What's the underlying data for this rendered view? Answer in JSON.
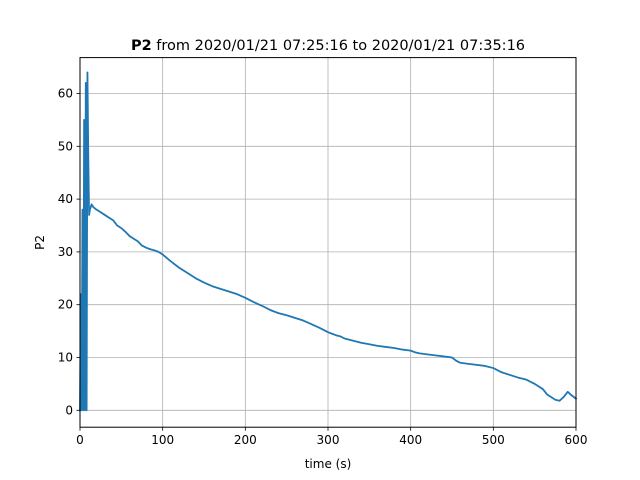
{
  "chart_data": {
    "type": "line",
    "title": {
      "bold": "P2",
      "text": " from 2020/01/21 07:25:16 to 2020/01/21 07:35:16"
    },
    "xlabel": "time (s)",
    "ylabel": "P2",
    "xlim": [
      0,
      600
    ],
    "ylim": [
      -3.2,
      66.8
    ],
    "xticks": [
      0,
      100,
      200,
      300,
      400,
      500,
      600
    ],
    "yticks": [
      0,
      10,
      20,
      30,
      40,
      50,
      60
    ],
    "grid": true,
    "legend": false,
    "series": [
      {
        "color": "#1f77b4",
        "x": [
          0,
          1,
          2,
          3,
          4,
          5,
          6,
          7,
          8,
          9,
          10,
          11,
          12,
          14,
          16,
          20,
          25,
          30,
          35,
          40,
          45,
          50,
          55,
          60,
          65,
          70,
          75,
          80,
          85,
          90,
          95,
          100,
          110,
          120,
          130,
          140,
          150,
          160,
          170,
          180,
          190,
          200,
          210,
          220,
          230,
          240,
          250,
          260,
          270,
          280,
          290,
          300,
          305,
          310,
          315,
          320,
          330,
          340,
          350,
          360,
          370,
          380,
          390,
          400,
          405,
          410,
          420,
          430,
          440,
          450,
          455,
          460,
          470,
          480,
          490,
          500,
          505,
          510,
          520,
          530,
          540,
          545,
          550,
          555,
          560,
          565,
          570,
          575,
          580,
          585,
          590,
          595,
          600
        ],
        "y": [
          0,
          22,
          0,
          38,
          0,
          55,
          0,
          62,
          0,
          64,
          48,
          37,
          38,
          39,
          38.5,
          38,
          37.5,
          37,
          36.5,
          36,
          35,
          34.5,
          33.8,
          33,
          32.5,
          32,
          31.2,
          30.8,
          30.5,
          30.3,
          30,
          29.5,
          28.2,
          27,
          26,
          25,
          24.2,
          23.5,
          23,
          22.5,
          22,
          21.3,
          20.5,
          19.8,
          19,
          18.4,
          18,
          17.5,
          17,
          16.3,
          15.6,
          14.8,
          14.5,
          14.2,
          14,
          13.6,
          13.2,
          12.8,
          12.5,
          12.2,
          12,
          11.8,
          11.5,
          11.3,
          11,
          10.8,
          10.6,
          10.4,
          10.2,
          10,
          9.4,
          9,
          8.8,
          8.6,
          8.4,
          8,
          7.6,
          7.2,
          6.7,
          6.2,
          5.8,
          5.4,
          5,
          4.5,
          4,
          3,
          2.5,
          2,
          1.8,
          2.5,
          3.5,
          2.8,
          2.2
        ]
      }
    ]
  }
}
